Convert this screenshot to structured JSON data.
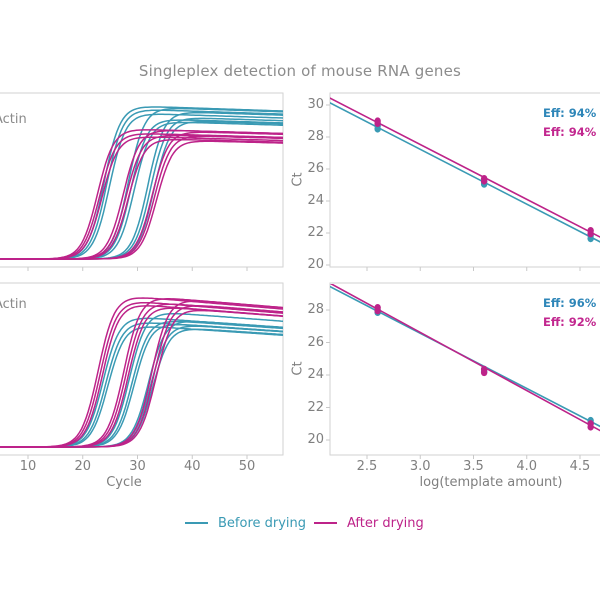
{
  "title": "Singleplex detection of mouse RNA genes",
  "colors": {
    "before": "#3a9ab4",
    "after": "#bd2389",
    "before_text": "#2e86b8",
    "after_text": "#c2278f",
    "title_text": "#8c8c8c",
    "axis_text": "#7f7f7f",
    "panel_border": "#d2d2d2",
    "tick": "#c9c9c9",
    "background": "#ffffff"
  },
  "legend": {
    "items": [
      {
        "label": "Before drying",
        "series": "before"
      },
      {
        "label": "After drying",
        "series": "after"
      }
    ]
  },
  "chart_data": [
    {
      "id": "amplification-top",
      "type": "line",
      "kind": "qpcr-amplification-curves",
      "gene_label": "Actin",
      "xlabel": "Cycle",
      "x_ticks": [
        10,
        20,
        30,
        40,
        50
      ],
      "x_tick_labels": [],
      "x_range": [
        5,
        57
      ],
      "ylabel": "",
      "grid": false,
      "steepness": 0.68,
      "plateau_decay": 0.0012,
      "series": [
        {
          "name": "Before drying",
          "color": "before",
          "curves": [
            {
              "midpoint": 23.9,
              "plateau": 0.93
            },
            {
              "midpoint": 24.4,
              "plateau": 0.91
            },
            {
              "midpoint": 24.9,
              "plateau": 0.885
            },
            {
              "midpoint": 28.3,
              "plateau": 0.92
            },
            {
              "midpoint": 28.8,
              "plateau": 0.85
            },
            {
              "midpoint": 29.4,
              "plateau": 0.835
            },
            {
              "midpoint": 31.9,
              "plateau": 0.895
            },
            {
              "midpoint": 32.4,
              "plateau": 0.86
            },
            {
              "midpoint": 33.0,
              "plateau": 0.84
            }
          ]
        },
        {
          "name": "After drying",
          "color": "after",
          "curves": [
            {
              "midpoint": 22.7,
              "plateau": 0.79
            },
            {
              "midpoint": 23.1,
              "plateau": 0.765
            },
            {
              "midpoint": 23.5,
              "plateau": 0.745
            },
            {
              "midpoint": 27.4,
              "plateau": 0.785
            },
            {
              "midpoint": 27.9,
              "plateau": 0.755
            },
            {
              "midpoint": 28.3,
              "plateau": 0.73
            },
            {
              "midpoint": 32.7,
              "plateau": 0.775
            },
            {
              "midpoint": 33.1,
              "plateau": 0.75
            },
            {
              "midpoint": 33.5,
              "plateau": 0.72
            }
          ]
        }
      ]
    },
    {
      "id": "standard-top",
      "type": "scatter",
      "kind": "qpcr-standard-curve",
      "xlabel": "log(template amount)",
      "x_ticks": [
        2.5,
        3.0,
        3.5,
        4.0,
        4.5
      ],
      "x_tick_labels": [],
      "x_range": [
        2.15,
        4.75
      ],
      "ylabel": "Ct",
      "y_ticks": [
        20,
        22,
        24,
        26,
        28,
        30
      ],
      "grid": false,
      "series": [
        {
          "name": "Before drying",
          "color": "before",
          "annotation": "Eff: 94% r2",
          "points": [
            {
              "x": 2.6,
              "ct": [
                28.5,
                28.7
              ]
            },
            {
              "x": 3.6,
              "ct": [
                25.05,
                25.2
              ]
            },
            {
              "x": 4.6,
              "ct": [
                21.65,
                21.85
              ]
            }
          ],
          "fit": {
            "x0": 2.6,
            "ct0": 28.6,
            "slope": -3.425
          }
        },
        {
          "name": "After drying",
          "color": "after",
          "annotation": "Eff: 94% r2",
          "points": [
            {
              "x": 2.6,
              "ct": [
                28.85,
                29.0
              ]
            },
            {
              "x": 3.6,
              "ct": [
                25.25,
                25.4
              ]
            },
            {
              "x": 4.6,
              "ct": [
                21.95,
                22.15
              ]
            }
          ],
          "fit": {
            "x0": 2.6,
            "ct0": 28.9,
            "slope": -3.425
          }
        }
      ]
    },
    {
      "id": "amplification-bottom",
      "type": "line",
      "kind": "qpcr-amplification-curves",
      "gene_label": "Actin",
      "xlabel": "Cycle",
      "x_ticks": [
        10,
        20,
        30,
        40,
        50
      ],
      "x_tick_labels": [
        "10",
        "20",
        "30",
        "40",
        "50"
      ],
      "x_range": [
        5,
        57
      ],
      "ylabel": "",
      "grid": false,
      "steepness": 0.66,
      "plateau_decay": 0.003,
      "series": [
        {
          "name": "Before drying",
          "color": "before",
          "curves": [
            {
              "midpoint": 23.7,
              "plateau": 0.82
            },
            {
              "midpoint": 24.2,
              "plateau": 0.79
            },
            {
              "midpoint": 24.6,
              "plateau": 0.765
            },
            {
              "midpoint": 28.5,
              "plateau": 0.85
            },
            {
              "midpoint": 29.0,
              "plateau": 0.8
            },
            {
              "midpoint": 29.4,
              "plateau": 0.78
            },
            {
              "midpoint": 32.0,
              "plateau": 0.8
            },
            {
              "midpoint": 32.4,
              "plateau": 0.77
            },
            {
              "midpoint": 32.8,
              "plateau": 0.75
            }
          ]
        },
        {
          "name": "After drying",
          "color": "after",
          "curves": [
            {
              "midpoint": 22.8,
              "plateau": 0.95
            },
            {
              "midpoint": 23.2,
              "plateau": 0.92
            },
            {
              "midpoint": 23.6,
              "plateau": 0.9
            },
            {
              "midpoint": 27.5,
              "plateau": 0.945
            },
            {
              "midpoint": 27.9,
              "plateau": 0.91
            },
            {
              "midpoint": 28.3,
              "plateau": 0.885
            },
            {
              "midpoint": 32.6,
              "plateau": 0.93
            },
            {
              "midpoint": 33.0,
              "plateau": 0.9
            },
            {
              "midpoint": 33.4,
              "plateau": 0.87
            }
          ]
        }
      ]
    },
    {
      "id": "standard-bottom",
      "type": "scatter",
      "kind": "qpcr-standard-curve",
      "xlabel": "log(template amount)",
      "x_ticks": [
        2.5,
        3.0,
        3.5,
        4.0,
        4.5
      ],
      "x_tick_labels": [
        "2.5",
        "3.0",
        "3.5",
        "4.0",
        "4.5"
      ],
      "x_range": [
        2.15,
        4.75
      ],
      "ylabel": "Ct",
      "y_ticks": [
        20,
        22,
        24,
        26,
        28
      ],
      "grid": false,
      "series": [
        {
          "name": "Before drying",
          "color": "before",
          "annotation": "Eff: 96% r2",
          "points": [
            {
              "x": 2.6,
              "ct": [
                27.85,
                28.0
              ]
            },
            {
              "x": 3.6,
              "ct": [
                24.2,
                24.35
              ]
            },
            {
              "x": 4.6,
              "ct": [
                21.05,
                21.2
              ]
            }
          ],
          "fit": {
            "x0": 2.6,
            "ct0": 27.92,
            "slope": -3.39
          }
        },
        {
          "name": "After drying",
          "color": "after",
          "annotation": "Eff: 92% r2",
          "points": [
            {
              "x": 2.6,
              "ct": [
                27.95,
                28.15
              ]
            },
            {
              "x": 3.6,
              "ct": [
                24.15,
                24.35
              ]
            },
            {
              "x": 4.6,
              "ct": [
                20.8,
                21.0
              ]
            }
          ],
          "fit": {
            "x0": 2.6,
            "ct0": 28.05,
            "slope": -3.575
          }
        }
      ]
    }
  ]
}
